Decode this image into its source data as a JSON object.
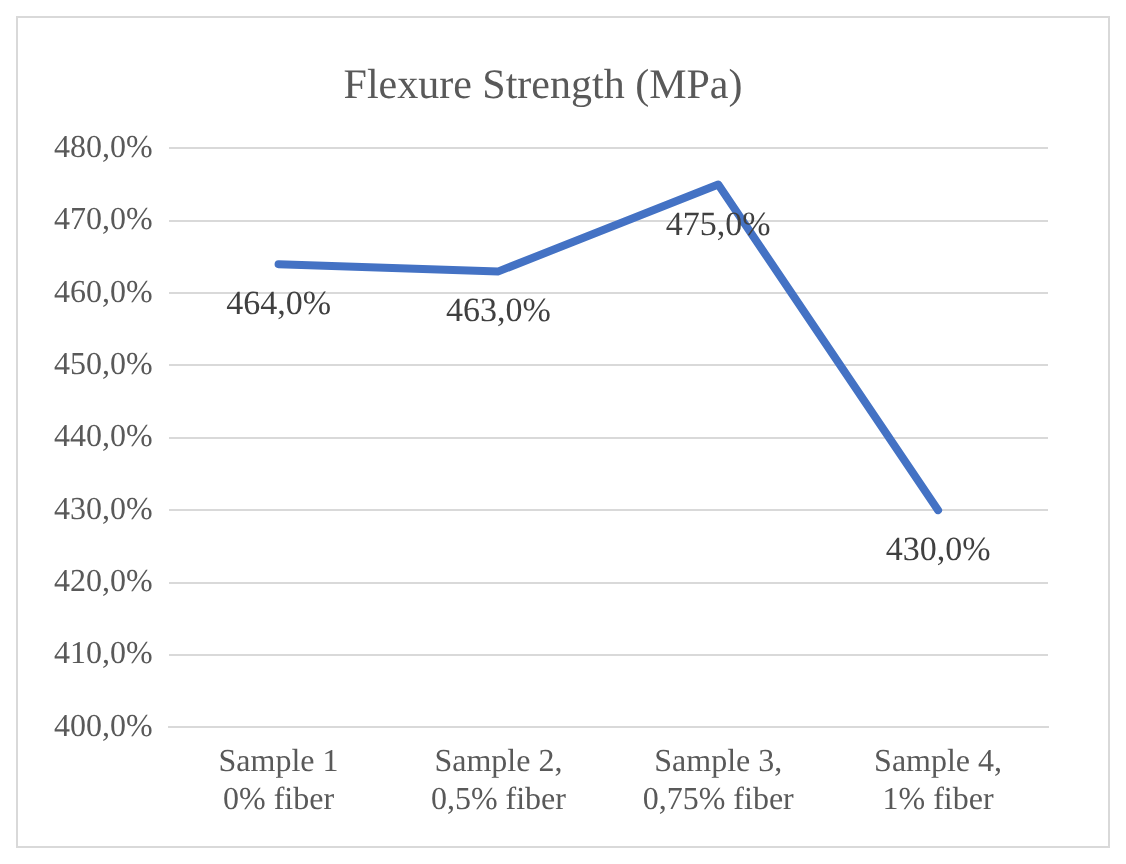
{
  "chart_data": {
    "type": "line",
    "title": "Flexure Strength (MPa)",
    "categories": [
      "Sample 1\n0% fiber",
      "Sample 2,\n0,5% fiber",
      "Sample 3,\n0,75% fiber",
      "Sample 4,\n1% fiber"
    ],
    "series": [
      {
        "color": "#4472c4",
        "values": [
          464,
          463,
          475,
          430
        ],
        "value_labels": [
          "464,0%",
          "463,0%",
          "475,0%",
          "430,0%"
        ]
      }
    ],
    "ylim": [
      400,
      480
    ],
    "yticks": [
      {
        "value": 400,
        "label": "400,0%"
      },
      {
        "value": 410,
        "label": "410,0%"
      },
      {
        "value": 420,
        "label": "420,0%"
      },
      {
        "value": 430,
        "label": "430,0%"
      },
      {
        "value": 440,
        "label": "440,0%"
      },
      {
        "value": 450,
        "label": "450,0%"
      },
      {
        "value": 460,
        "label": "460,0%"
      },
      {
        "value": 470,
        "label": "470,0%"
      },
      {
        "value": 480,
        "label": "480,0%"
      }
    ],
    "grid": "y",
    "legend": false,
    "marker": "none",
    "line_style": "solid"
  }
}
